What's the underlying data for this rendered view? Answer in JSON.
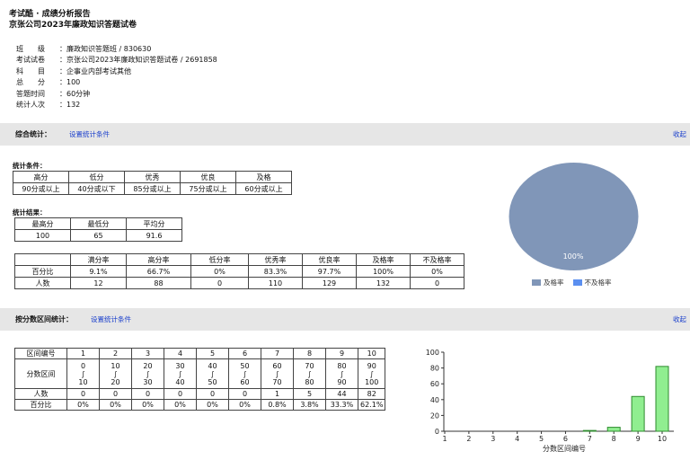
{
  "header": {
    "line1": "考试酷 · 成绩分析报告",
    "line2": "京张公司2023年廉政知识答题试卷"
  },
  "info": [
    {
      "key": "班　　级",
      "value": "廉政知识答题班 / 830630"
    },
    {
      "key": "考试试卷",
      "value": "京张公司2023年廉政知识答题试卷 / 2691858"
    },
    {
      "key": "科　　目",
      "value": "企事业内部考试其他"
    },
    {
      "key": "总　　分",
      "value": "100"
    },
    {
      "key": "答题时间",
      "value": "60分钟"
    },
    {
      "key": "统计人次",
      "value": "132"
    }
  ],
  "section1": {
    "title": "综合统计：",
    "link": "设置统计条件",
    "collapse": "收起"
  },
  "section2": {
    "title": "按分数区间统计：",
    "link": "设置统计条件",
    "collapse": "收起"
  },
  "conditions": {
    "label": "统计条件：",
    "headers": [
      "高分",
      "低分",
      "优秀",
      "优良",
      "及格"
    ],
    "values": [
      "90分或以上",
      "40分或以下",
      "85分或以上",
      "75分或以上",
      "60分或以上"
    ]
  },
  "results": {
    "label": "统计结果：",
    "headers": [
      "最高分",
      "最低分",
      "平均分"
    ],
    "values": [
      "100",
      "65",
      "91.6"
    ]
  },
  "rates": {
    "headers": [
      "",
      "满分率",
      "高分率",
      "低分率",
      "优秀率",
      "优良率",
      "及格率",
      "不及格率"
    ],
    "rows": [
      [
        "百分比",
        "9.1%",
        "66.7%",
        "0%",
        "83.3%",
        "97.7%",
        "100%",
        "0%"
      ],
      [
        "人数",
        "12",
        "88",
        "0",
        "110",
        "129",
        "132",
        "0"
      ]
    ]
  },
  "pie": {
    "label": "100%",
    "colors": {
      "pass": "#8096b8",
      "fail": "#5b8ff0"
    },
    "legend": [
      "及格率",
      "不及格率"
    ],
    "values": [
      100,
      0
    ]
  },
  "intervals": {
    "row_label": "区间编号",
    "ids": [
      "1",
      "2",
      "3",
      "4",
      "5",
      "6",
      "7",
      "8",
      "9",
      "10"
    ],
    "range_label": "分数区间",
    "ranges": [
      [
        "0",
        "∫",
        "10"
      ],
      [
        "10",
        "∫",
        "20"
      ],
      [
        "20",
        "∫",
        "30"
      ],
      [
        "30",
        "∫",
        "40"
      ],
      [
        "40",
        "∫",
        "50"
      ],
      [
        "50",
        "∫",
        "60"
      ],
      [
        "60",
        "∫",
        "70"
      ],
      [
        "70",
        "∫",
        "80"
      ],
      [
        "80",
        "∫",
        "90"
      ],
      [
        "90",
        "∫",
        "100"
      ]
    ],
    "count_label": "人数",
    "counts": [
      "0",
      "0",
      "0",
      "0",
      "0",
      "0",
      "1",
      "5",
      "44",
      "82"
    ],
    "pct_label": "百分比",
    "pcts": [
      "0%",
      "0%",
      "0%",
      "0%",
      "0%",
      "0%",
      "0.8%",
      "3.8%",
      "33.3%",
      "62.1%"
    ]
  },
  "chart_data": {
    "type": "bar",
    "categories": [
      "1",
      "2",
      "3",
      "4",
      "5",
      "6",
      "7",
      "8",
      "9",
      "10"
    ],
    "values": [
      0,
      0,
      0,
      0,
      0,
      0,
      1,
      5,
      44,
      82
    ],
    "xlabel": "分数区间编号",
    "ylabel": "人数",
    "ylim": [
      0,
      100
    ],
    "yticks": [
      0,
      20,
      40,
      60,
      80,
      100
    ],
    "bar_color": "#90ee90",
    "bar_border": "#2e8b2e"
  }
}
